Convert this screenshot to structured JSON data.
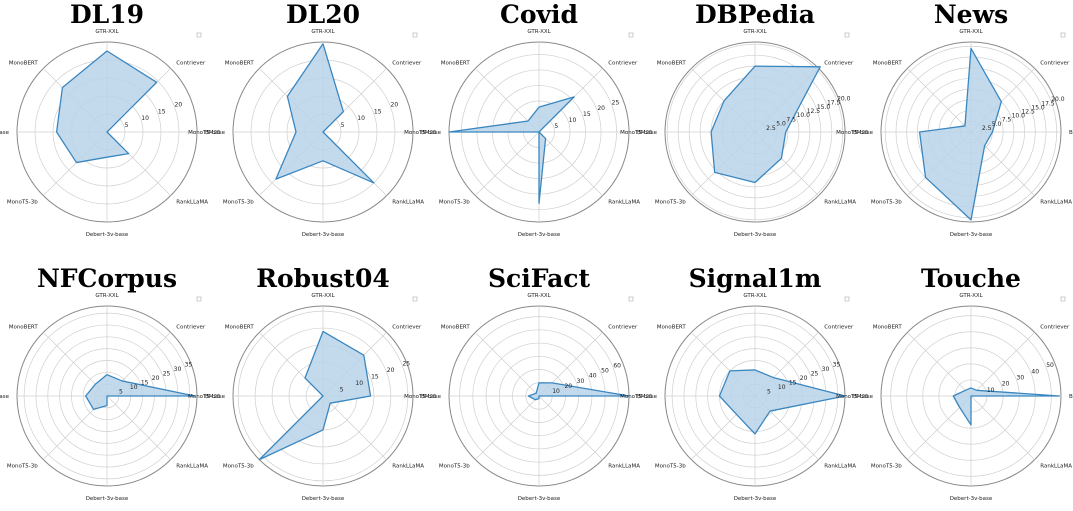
{
  "chart_data": [
    {
      "type": "radar",
      "title": "DL19",
      "axes": [
        "GTR-XXL",
        "Contriever",
        "BM25",
        "RankLLaMA",
        "Debert-3v-base",
        "MonoT5-3b",
        "MonoT5-base",
        "MonoBERT"
      ],
      "values": [
        22.5,
        19.5,
        0,
        8.5,
        7,
        12,
        14,
        17.5
      ],
      "rmax": 25,
      "ticks": [
        "5",
        "10",
        "15",
        "20"
      ],
      "tick_vals": [
        5,
        10,
        15,
        20
      ]
    },
    {
      "type": "radar",
      "title": "DL20",
      "axes": [
        "GTR-XXL",
        "Contriever",
        "BM25",
        "RankLLaMA",
        "Debert-3v-base",
        "MonoT5-3b",
        "MonoT5-base",
        "MonoBERT"
      ],
      "values": [
        24.5,
        8,
        0,
        20,
        8,
        18.5,
        7.5,
        14
      ],
      "rmax": 25,
      "ticks": [
        "5",
        "10",
        "15",
        "20"
      ],
      "tick_vals": [
        5,
        10,
        15,
        20
      ]
    },
    {
      "type": "radar",
      "title": "Covid",
      "axes": [
        "GTR-XXL",
        "Contriever",
        "BM25",
        "RankLLaMA",
        "Debert-3v-base",
        "MonoT5-3b",
        "MonoT5-base",
        "MonoBERT"
      ],
      "values": [
        8,
        16,
        0,
        3,
        23,
        0,
        29,
        5
      ],
      "rmax": 29,
      "ticks": [
        "5",
        "10",
        "15",
        "20",
        "25"
      ],
      "tick_vals": [
        5,
        10,
        15,
        20,
        25
      ]
    },
    {
      "type": "radar",
      "title": "DBPedia",
      "axes": [
        "GTR-XXL",
        "Contriever",
        "BM25",
        "RankLLaMA",
        "Debert-3v-base",
        "MonoT5-3b",
        "MonoT5-base",
        "MonoBERT"
      ],
      "values": [
        15,
        21,
        7,
        8.5,
        11.5,
        13,
        10,
        10
      ],
      "rmax": 20.5,
      "ticks": [
        "2.5",
        "5.0",
        "7.5",
        "10.0",
        "12.5",
        "15.0",
        "17.5",
        "20.0"
      ],
      "tick_vals": [
        2.5,
        5,
        7.5,
        10,
        12.5,
        15,
        17.5,
        20
      ]
    },
    {
      "type": "radar",
      "title": "News",
      "axes": [
        "GTR-XXL",
        "Contriever",
        "BM25",
        "RankLLaMA",
        "Debert-3v-base",
        "MonoT5-3b",
        "MonoT5-base",
        "MonoBERT"
      ],
      "values": [
        19.5,
        10,
        5,
        4.5,
        20.5,
        15,
        12,
        2
      ],
      "rmax": 21,
      "ticks": [
        "2.5",
        "5.0",
        "7.5",
        "10.0",
        "12.5",
        "15.0",
        "17.5",
        "20.0"
      ],
      "tick_vals": [
        2.5,
        5,
        7.5,
        10,
        12.5,
        15,
        17.5,
        20
      ]
    },
    {
      "type": "radar",
      "title": "NFCorpus",
      "axes": [
        "GTR-XXL",
        "Contriever",
        "BM25",
        "RankLLaMA",
        "Debert-3v-base",
        "MonoT5-3b",
        "MonoT5-base",
        "MonoBERT"
      ],
      "values": [
        9,
        9,
        37,
        0,
        4,
        8,
        9,
        7
      ],
      "rmax": 38,
      "ticks": [
        "5",
        "10",
        "15",
        "20",
        "25",
        "30",
        "35"
      ],
      "tick_vals": [
        5,
        10,
        15,
        20,
        25,
        30,
        35
      ]
    },
    {
      "type": "radar",
      "title": "Robust04",
      "axes": [
        "GTR-XXL",
        "Contriever",
        "BM25",
        "RankLLaMA",
        "Debert-3v-base",
        "MonoT5-3b",
        "MonoT5-base",
        "MonoBERT"
      ],
      "values": [
        19,
        17,
        14,
        3,
        10,
        26.5,
        0,
        7.5
      ],
      "rmax": 26.5,
      "ticks": [
        "5",
        "10",
        "15",
        "20",
        "25"
      ],
      "tick_vals": [
        5,
        10,
        15,
        20,
        25
      ]
    },
    {
      "type": "radar",
      "title": "SciFact",
      "axes": [
        "GTR-XXL",
        "Contriever",
        "BM25",
        "RankLLaMA",
        "Debert-3v-base",
        "MonoT5-3b",
        "MonoT5-base",
        "MonoBERT"
      ],
      "values": [
        10,
        14,
        68,
        0,
        2,
        4,
        8,
        3
      ],
      "rmax": 68,
      "ticks": [
        "10",
        "20",
        "30",
        "40",
        "50",
        "60"
      ],
      "tick_vals": [
        10,
        20,
        30,
        40,
        50,
        60
      ]
    },
    {
      "type": "radar",
      "title": "Signal1m",
      "axes": [
        "GTR-XXL",
        "Contriever",
        "BM25",
        "RankLLaMA",
        "Debert-3v-base",
        "MonoT5-3b",
        "MonoT5-base",
        "MonoBERT"
      ],
      "values": [
        11,
        11,
        38,
        9,
        16,
        11,
        15,
        15
      ],
      "rmax": 38,
      "ticks": [
        "5",
        "10",
        "15",
        "20",
        "25",
        "30",
        "35"
      ],
      "tick_vals": [
        5,
        10,
        15,
        20,
        25,
        30,
        35
      ]
    },
    {
      "type": "radar",
      "title": "Touche",
      "axes": [
        "GTR-XXL",
        "Contriever",
        "BM25",
        "RankLLaMA",
        "Debert-3v-base",
        "MonoT5-3b",
        "MonoT5-base",
        "MonoBERT"
      ],
      "values": [
        5,
        5,
        55,
        0,
        18,
        10,
        11,
        5
      ],
      "rmax": 56,
      "ticks": [
        "10",
        "20",
        "30",
        "40",
        "50"
      ],
      "tick_vals": [
        10,
        20,
        30,
        40,
        50
      ]
    }
  ],
  "colors": {
    "line": "#3a87c0",
    "fill": "#b8d3ea",
    "grid": "#cfcfcf",
    "outer": "#888888"
  }
}
